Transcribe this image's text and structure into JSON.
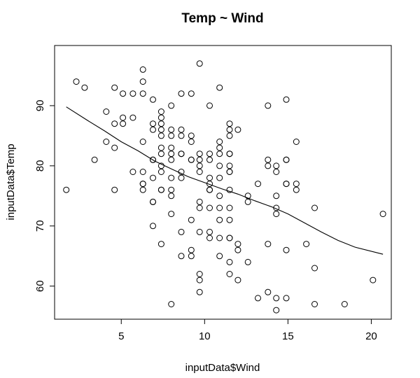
{
  "chart_data": {
    "type": "scatter",
    "title": "Temp ~ Wind",
    "xlabel": "inputData$Wind",
    "ylabel": "inputData$Temp",
    "xlim": [
      1.0,
      21.2
    ],
    "ylim": [
      54.5,
      100.0
    ],
    "x_ticks": [
      5,
      10,
      15,
      20
    ],
    "y_ticks": [
      60,
      70,
      80,
      90
    ],
    "grid": false,
    "legend": "none",
    "points": [
      [
        1.7,
        76
      ],
      [
        2.3,
        94
      ],
      [
        2.8,
        93
      ],
      [
        3.4,
        81
      ],
      [
        4.1,
        89
      ],
      [
        4.1,
        84
      ],
      [
        4.6,
        93
      ],
      [
        4.6,
        87
      ],
      [
        4.6,
        83
      ],
      [
        4.6,
        76
      ],
      [
        5.1,
        92
      ],
      [
        5.1,
        88
      ],
      [
        5.1,
        87
      ],
      [
        5.7,
        92
      ],
      [
        5.7,
        88
      ],
      [
        5.7,
        79
      ],
      [
        6.3,
        96
      ],
      [
        6.3,
        94
      ],
      [
        6.3,
        92
      ],
      [
        6.3,
        84
      ],
      [
        6.3,
        79
      ],
      [
        6.3,
        77
      ],
      [
        6.3,
        77
      ],
      [
        6.3,
        76
      ],
      [
        6.9,
        91
      ],
      [
        6.9,
        87
      ],
      [
        6.9,
        86
      ],
      [
        6.9,
        81
      ],
      [
        6.9,
        81
      ],
      [
        6.9,
        78
      ],
      [
        6.9,
        74
      ],
      [
        6.9,
        74
      ],
      [
        6.9,
        70
      ],
      [
        7.4,
        89
      ],
      [
        7.4,
        88
      ],
      [
        7.4,
        87
      ],
      [
        7.4,
        86
      ],
      [
        7.4,
        85
      ],
      [
        7.4,
        83
      ],
      [
        7.4,
        82
      ],
      [
        7.4,
        80
      ],
      [
        7.4,
        79
      ],
      [
        7.4,
        76
      ],
      [
        7.4,
        76
      ],
      [
        7.4,
        67
      ],
      [
        8.0,
        90
      ],
      [
        8.0,
        86
      ],
      [
        8.0,
        85
      ],
      [
        8.0,
        83
      ],
      [
        8.0,
        82
      ],
      [
        8.0,
        81
      ],
      [
        8.0,
        78
      ],
      [
        8.0,
        76
      ],
      [
        8.0,
        75
      ],
      [
        8.0,
        72
      ],
      [
        8.0,
        57
      ],
      [
        8.6,
        92
      ],
      [
        8.6,
        86
      ],
      [
        8.6,
        85
      ],
      [
        8.6,
        82
      ],
      [
        8.6,
        82
      ],
      [
        8.6,
        79
      ],
      [
        8.6,
        78
      ],
      [
        8.6,
        69
      ],
      [
        8.6,
        65
      ],
      [
        9.2,
        92
      ],
      [
        9.2,
        85
      ],
      [
        9.2,
        84
      ],
      [
        9.2,
        81
      ],
      [
        9.2,
        81
      ],
      [
        9.2,
        71
      ],
      [
        9.2,
        66
      ],
      [
        9.2,
        65
      ],
      [
        9.7,
        97
      ],
      [
        9.7,
        82
      ],
      [
        9.7,
        81
      ],
      [
        9.7,
        80
      ],
      [
        9.7,
        79
      ],
      [
        9.7,
        74
      ],
      [
        9.7,
        73
      ],
      [
        9.7,
        69
      ],
      [
        9.7,
        62
      ],
      [
        9.7,
        61
      ],
      [
        9.7,
        59
      ],
      [
        10.3,
        90
      ],
      [
        10.3,
        82
      ],
      [
        10.3,
        81
      ],
      [
        10.3,
        78
      ],
      [
        10.3,
        77
      ],
      [
        10.3,
        76
      ],
      [
        10.3,
        76
      ],
      [
        10.3,
        73
      ],
      [
        10.3,
        69
      ],
      [
        10.3,
        68
      ],
      [
        10.9,
        93
      ],
      [
        10.9,
        84
      ],
      [
        10.9,
        83
      ],
      [
        10.9,
        82
      ],
      [
        10.9,
        80
      ],
      [
        10.9,
        78
      ],
      [
        10.9,
        75
      ],
      [
        10.9,
        73
      ],
      [
        10.9,
        71
      ],
      [
        10.9,
        68
      ],
      [
        10.9,
        65
      ],
      [
        11.5,
        87
      ],
      [
        11.5,
        86
      ],
      [
        11.5,
        85
      ],
      [
        11.5,
        82
      ],
      [
        11.5,
        82
      ],
      [
        11.5,
        80
      ],
      [
        11.5,
        79
      ],
      [
        11.5,
        79
      ],
      [
        11.5,
        76
      ],
      [
        11.5,
        73
      ],
      [
        11.5,
        71
      ],
      [
        11.5,
        68
      ],
      [
        11.5,
        68
      ],
      [
        11.5,
        64
      ],
      [
        11.5,
        62
      ],
      [
        12.0,
        86
      ],
      [
        12.0,
        67
      ],
      [
        12.0,
        66
      ],
      [
        12.0,
        61
      ],
      [
        12.6,
        75
      ],
      [
        12.6,
        74
      ],
      [
        12.6,
        64
      ],
      [
        13.2,
        77
      ],
      [
        13.2,
        58
      ],
      [
        13.8,
        90
      ],
      [
        13.8,
        81
      ],
      [
        13.8,
        80
      ],
      [
        13.8,
        67
      ],
      [
        13.8,
        59
      ],
      [
        14.3,
        80
      ],
      [
        14.3,
        79
      ],
      [
        14.3,
        75
      ],
      [
        14.3,
        73
      ],
      [
        14.3,
        72
      ],
      [
        14.3,
        58
      ],
      [
        14.3,
        56
      ],
      [
        14.9,
        91
      ],
      [
        14.9,
        81
      ],
      [
        14.9,
        81
      ],
      [
        14.9,
        77
      ],
      [
        14.9,
        77
      ],
      [
        14.9,
        66
      ],
      [
        14.9,
        58
      ],
      [
        15.5,
        84
      ],
      [
        15.5,
        77
      ],
      [
        15.5,
        76
      ],
      [
        16.1,
        67
      ],
      [
        16.6,
        73
      ],
      [
        16.6,
        63
      ],
      [
        16.6,
        57
      ],
      [
        18.4,
        57
      ],
      [
        20.1,
        61
      ],
      [
        20.7,
        72
      ]
    ],
    "smooth_line": [
      [
        1.7,
        89.8
      ],
      [
        3,
        87.5
      ],
      [
        4,
        85.8
      ],
      [
        5,
        84.0
      ],
      [
        6,
        82.5
      ],
      [
        7,
        80.8
      ],
      [
        8,
        79.5
      ],
      [
        9,
        78.2
      ],
      [
        10,
        77.2
      ],
      [
        11,
        76.2
      ],
      [
        12,
        75.3
      ],
      [
        13,
        74.2
      ],
      [
        14,
        73.2
      ],
      [
        15,
        72.0
      ],
      [
        16,
        70.5
      ],
      [
        17,
        69.0
      ],
      [
        18,
        67.6
      ],
      [
        19,
        66.5
      ],
      [
        20.7,
        65.3
      ]
    ]
  }
}
